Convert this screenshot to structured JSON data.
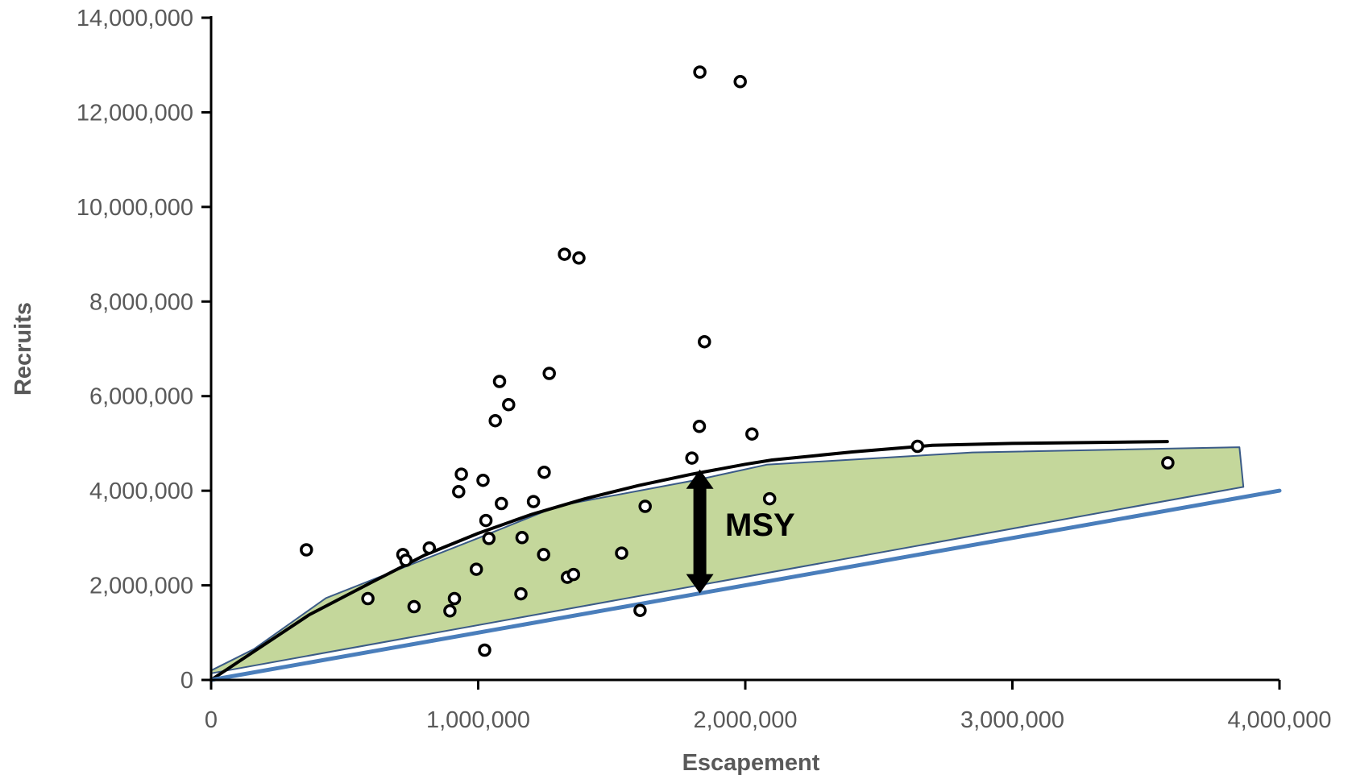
{
  "chart_data": {
    "type": "scatter",
    "xlabel": "Escapement",
    "ylabel": "Recruits",
    "xlim": [
      0,
      4000000
    ],
    "ylim": [
      0,
      14000000
    ],
    "x_ticks": [
      0,
      1000000,
      2000000,
      3000000,
      4000000
    ],
    "x_tick_labels": [
      "0",
      "1,000,000",
      "2,000,000",
      "3,000,000",
      "4,000,000"
    ],
    "y_ticks": [
      0,
      2000000,
      4000000,
      6000000,
      8000000,
      10000000,
      12000000,
      14000000
    ],
    "y_tick_labels": [
      "0",
      "2,000,000",
      "4,000,000",
      "6,000,000",
      "8,000,000",
      "10,000,000",
      "12,000,000",
      "14,000,000"
    ],
    "grid": false,
    "legend": "none",
    "annotation": {
      "text": "MSY",
      "x": 1830000,
      "y_low": 1830000,
      "y_high": 4450000
    },
    "series": [
      {
        "type": "scatter",
        "marker": "open-circle",
        "color": "#000000",
        "points": [
          [
            357000,
            2750000
          ],
          [
            587000,
            1720000
          ],
          [
            718000,
            2650000
          ],
          [
            729000,
            2530000
          ],
          [
            760000,
            1550000
          ],
          [
            817000,
            2790000
          ],
          [
            894000,
            1460000
          ],
          [
            911000,
            1720000
          ],
          [
            927000,
            3980000
          ],
          [
            937000,
            4350000
          ],
          [
            993000,
            2340000
          ],
          [
            1018000,
            4220000
          ],
          [
            1024000,
            630000
          ],
          [
            1029000,
            3370000
          ],
          [
            1040000,
            2990000
          ],
          [
            1064000,
            5480000
          ],
          [
            1080000,
            6310000
          ],
          [
            1087000,
            3730000
          ],
          [
            1114000,
            5820000
          ],
          [
            1160000,
            1820000
          ],
          [
            1164000,
            3010000
          ],
          [
            1207000,
            3770000
          ],
          [
            1245000,
            2650000
          ],
          [
            1247000,
            4390000
          ],
          [
            1266000,
            6480000
          ],
          [
            1323000,
            9000000
          ],
          [
            1334000,
            2170000
          ],
          [
            1357000,
            2230000
          ],
          [
            1377000,
            8920000
          ],
          [
            1537000,
            2680000
          ],
          [
            1606000,
            1470000
          ],
          [
            1625000,
            3670000
          ],
          [
            1800000,
            4690000
          ],
          [
            1828000,
            5360000
          ],
          [
            1830000,
            12850000
          ],
          [
            1847000,
            7150000
          ],
          [
            1981000,
            12650000
          ],
          [
            2025000,
            5200000
          ],
          [
            2091000,
            3830000
          ],
          [
            2645000,
            4940000
          ],
          [
            3582000,
            4590000
          ]
        ]
      },
      {
        "type": "line",
        "color": "#000000",
        "points": [
          [
            0,
            0
          ],
          [
            368000,
            1380000
          ],
          [
            600000,
            2060000
          ],
          [
            800000,
            2640000
          ],
          [
            1000000,
            3100000
          ],
          [
            1200000,
            3500000
          ],
          [
            1400000,
            3830000
          ],
          [
            1600000,
            4110000
          ],
          [
            1800000,
            4350000
          ],
          [
            2000000,
            4560000
          ],
          [
            2100000,
            4650000
          ],
          [
            2400000,
            4820000
          ],
          [
            2700000,
            4960000
          ],
          [
            3000000,
            5000000
          ],
          [
            3300000,
            5020000
          ],
          [
            3580000,
            5040000
          ]
        ]
      },
      {
        "type": "line",
        "color": "#4a7ebb",
        "points": [
          [
            0,
            0
          ],
          [
            4000000,
            4000000
          ]
        ]
      },
      {
        "type": "area",
        "color": "#c4d79b",
        "edge_color": "#3b5b87",
        "points": [
          [
            0,
            200000
          ],
          [
            160000,
            650000
          ],
          [
            430000,
            1730000
          ],
          [
            1000000,
            3000000
          ],
          [
            1300000,
            3680000
          ],
          [
            1820000,
            4230000
          ],
          [
            2080000,
            4550000
          ],
          [
            2850000,
            4810000
          ],
          [
            3850000,
            4920000
          ],
          [
            3865000,
            4080000
          ],
          [
            0,
            140000
          ]
        ]
      }
    ]
  }
}
